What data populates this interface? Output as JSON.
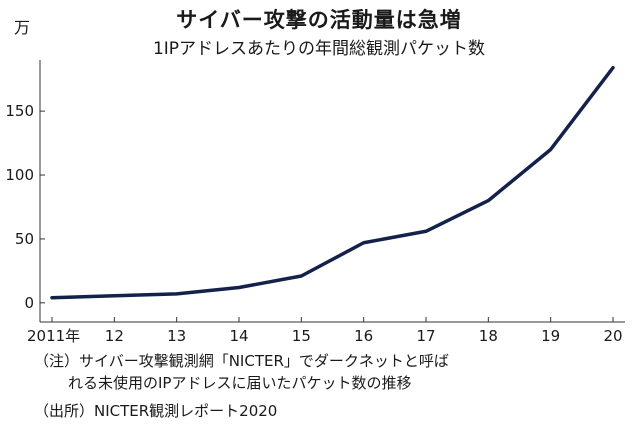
{
  "chart_data": {
    "type": "line",
    "title": "サイバー攻撃の活動量は急増",
    "subtitle": "1IPアドレスあたりの年間総観測パケット数",
    "unit": "万",
    "x": [
      "2011年",
      "12",
      "13",
      "14",
      "15",
      "16",
      "17",
      "18",
      "19",
      "20"
    ],
    "series": [
      {
        "values": [
          4,
          5.5,
          7,
          12,
          21,
          47,
          56,
          80,
          120,
          184
        ]
      }
    ],
    "ylim": [
      -15,
      190
    ],
    "yticks": [
      0,
      50,
      100,
      150
    ],
    "grid": false,
    "line_color": "#14214a"
  },
  "notes": {
    "note1": "（注）サイバー攻撃観測網「NICTER」でダークネットと呼ば",
    "note2": "れる未使用のIPアドレスに届いたパケット数の推移",
    "source": "（出所）NICTER観測レポート2020"
  }
}
